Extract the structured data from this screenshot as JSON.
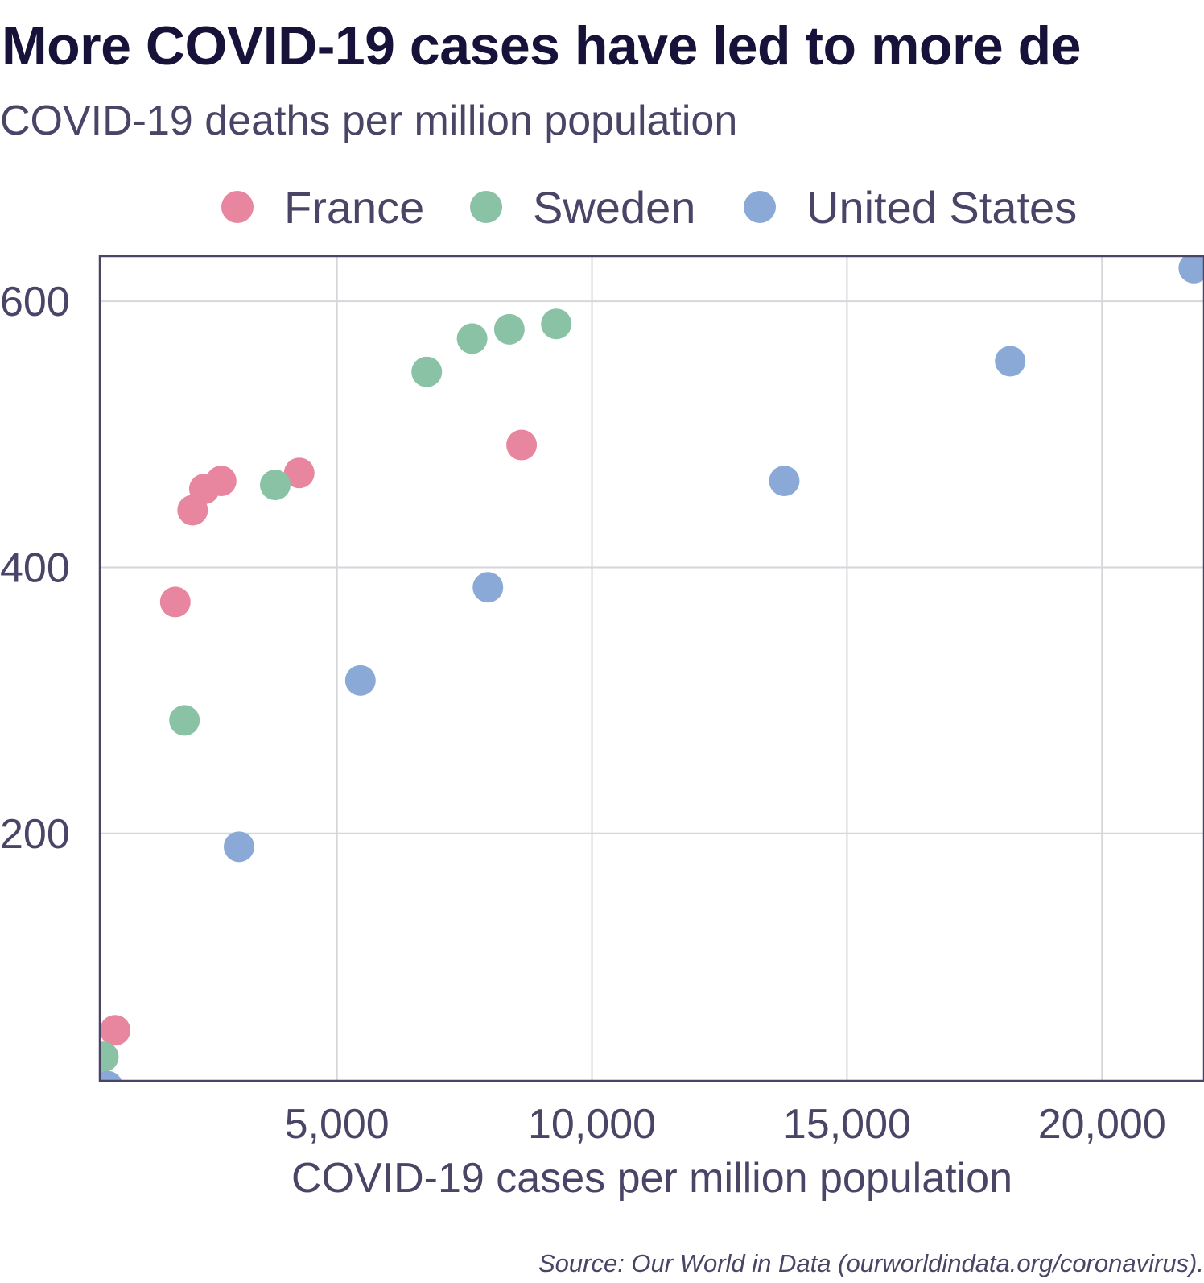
{
  "chart_data": {
    "type": "scatter",
    "title": "More COVID-19 cases have led to more de",
    "subtitle": "COVID-19 deaths per million population",
    "xlabel": "COVID-19 cases per million population",
    "ylabel": "",
    "source": "Source: Our World in Data (ourworldindata.org/coronavirus).",
    "xlim": [
      350,
      22000
    ],
    "ylim": [
      14,
      634
    ],
    "xticks": [
      5000,
      10000,
      15000,
      20000
    ],
    "xtick_labels": [
      "5,000",
      "10,000",
      "15,000",
      "20,000"
    ],
    "yticks": [
      200,
      400,
      600
    ],
    "ytick_labels": [
      "200",
      "400",
      "600"
    ],
    "grid": true,
    "legend_position": "top",
    "series": [
      {
        "name": "France",
        "color": "#e8869f",
        "points": [
          {
            "x": 650,
            "y": 52
          },
          {
            "x": 1830,
            "y": 374
          },
          {
            "x": 2170,
            "y": 443
          },
          {
            "x": 2400,
            "y": 459
          },
          {
            "x": 2730,
            "y": 465
          },
          {
            "x": 4260,
            "y": 471
          },
          {
            "x": 8620,
            "y": 492
          }
        ]
      },
      {
        "name": "Sweden",
        "color": "#8ac2a6",
        "points": [
          {
            "x": 420,
            "y": 32
          },
          {
            "x": 2010,
            "y": 285
          },
          {
            "x": 3790,
            "y": 462
          },
          {
            "x": 6760,
            "y": 547
          },
          {
            "x": 7650,
            "y": 572
          },
          {
            "x": 8380,
            "y": 579
          },
          {
            "x": 9300,
            "y": 583
          }
        ]
      },
      {
        "name": "United States",
        "color": "#8aa9d6",
        "points": [
          {
            "x": 500,
            "y": 10
          },
          {
            "x": 3080,
            "y": 190
          },
          {
            "x": 5460,
            "y": 315
          },
          {
            "x": 7960,
            "y": 385
          },
          {
            "x": 13770,
            "y": 465
          },
          {
            "x": 18200,
            "y": 555
          },
          {
            "x": 21800,
            "y": 625
          }
        ]
      }
    ]
  }
}
